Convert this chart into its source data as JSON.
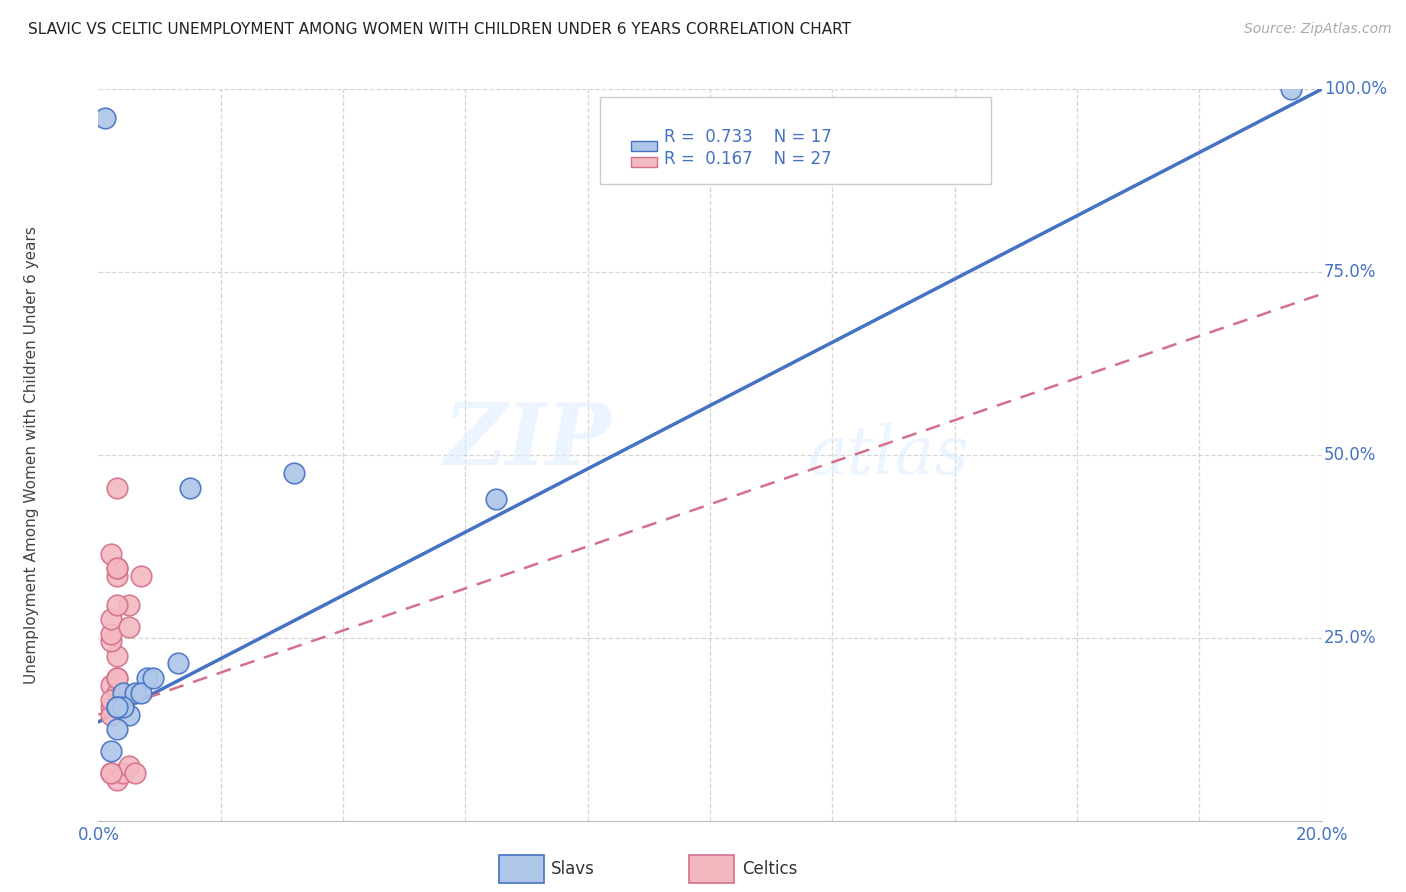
{
  "title": "SLAVIC VS CELTIC UNEMPLOYMENT AMONG WOMEN WITH CHILDREN UNDER 6 YEARS CORRELATION CHART",
  "source": "Source: ZipAtlas.com",
  "ylabel": "Unemployment Among Women with Children Under 6 years",
  "slavs_R": 0.733,
  "slavs_N": 17,
  "celtics_R": 0.167,
  "celtics_N": 27,
  "slavs_color": "#aec6e8",
  "celtics_color": "#f4b8c1",
  "slavs_line_color": "#4472c4",
  "celtics_line_color": "#d4708a",
  "legend_label_slavs": "Slavs",
  "legend_label_celtics": "Celtics",
  "background_color": "#ffffff",
  "grid_color": "#cccccc",
  "axis_label_color": "#4472c4",
  "watermark_zip": "ZIP",
  "watermark_atlas": "atlas",
  "xlim": [
    0.0,
    0.2
  ],
  "ylim": [
    0.0,
    1.0
  ],
  "slavs_line_x": [
    0.0,
    0.2
  ],
  "slavs_line_y": [
    0.135,
    1.0
  ],
  "celtics_line_x": [
    0.0,
    0.2
  ],
  "celtics_line_y": [
    0.145,
    0.72
  ],
  "slavs_x": [
    0.032,
    0.015,
    0.004,
    0.008,
    0.003,
    0.005,
    0.006,
    0.003,
    0.002,
    0.004,
    0.007,
    0.009,
    0.013,
    0.065,
    0.003,
    0.195,
    0.001
  ],
  "slavs_y": [
    0.475,
    0.455,
    0.175,
    0.195,
    0.155,
    0.145,
    0.175,
    0.125,
    0.095,
    0.155,
    0.175,
    0.195,
    0.215,
    0.44,
    0.155,
    1.0,
    0.96
  ],
  "celtics_x": [
    0.002,
    0.003,
    0.004,
    0.005,
    0.006,
    0.002,
    0.002,
    0.003,
    0.003,
    0.002,
    0.003,
    0.003,
    0.002,
    0.002,
    0.002,
    0.005,
    0.003,
    0.003,
    0.003,
    0.005,
    0.007,
    0.002,
    0.002,
    0.003,
    0.003,
    0.003,
    0.002
  ],
  "celtics_y": [
    0.065,
    0.055,
    0.065,
    0.075,
    0.065,
    0.065,
    0.155,
    0.175,
    0.335,
    0.185,
    0.195,
    0.225,
    0.245,
    0.255,
    0.275,
    0.295,
    0.295,
    0.345,
    0.175,
    0.265,
    0.335,
    0.365,
    0.145,
    0.195,
    0.345,
    0.455,
    0.165
  ]
}
